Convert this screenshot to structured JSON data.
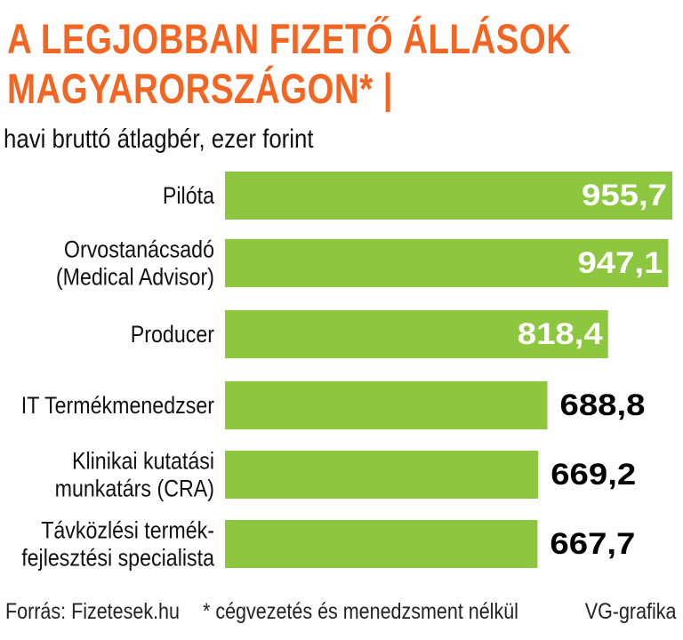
{
  "title_line1": "A LEGJOBBAN FIZETŐ ÁLLÁSOK",
  "title_line2": "MAGYARORSZÁGON* |",
  "subtitle": "havi bruttó átlagbér, ezer forint",
  "footer": {
    "source": "Forrás: Fizetesek.hu",
    "note": "* cégvezetés és menedzsment nélkül",
    "credit": "VG-grafika"
  },
  "chart_data": {
    "type": "bar",
    "orientation": "horizontal",
    "categories": [
      [
        "Pilóta"
      ],
      [
        "Orvostanácsadó",
        "(Medical Advisor)"
      ],
      [
        "Producer"
      ],
      [
        "IT Termékmenedzser"
      ],
      [
        "Klinikai kutatási",
        "munkatárs (CRA)"
      ],
      [
        "Távközlési termék-",
        "fejlesztési specialista"
      ]
    ],
    "values": [
      955.7,
      947.1,
      818.4,
      688.8,
      669.2,
      667.7
    ],
    "value_labels": [
      "955,7",
      "947,1",
      "818,4",
      "688,8",
      "669,2",
      "667,7"
    ],
    "xlim": [
      0,
      955.7
    ],
    "bar_color": "#8dc63f",
    "label_inside_color": "#ffffff",
    "label_outside_color": "#000000",
    "title_color": "#f26522"
  }
}
